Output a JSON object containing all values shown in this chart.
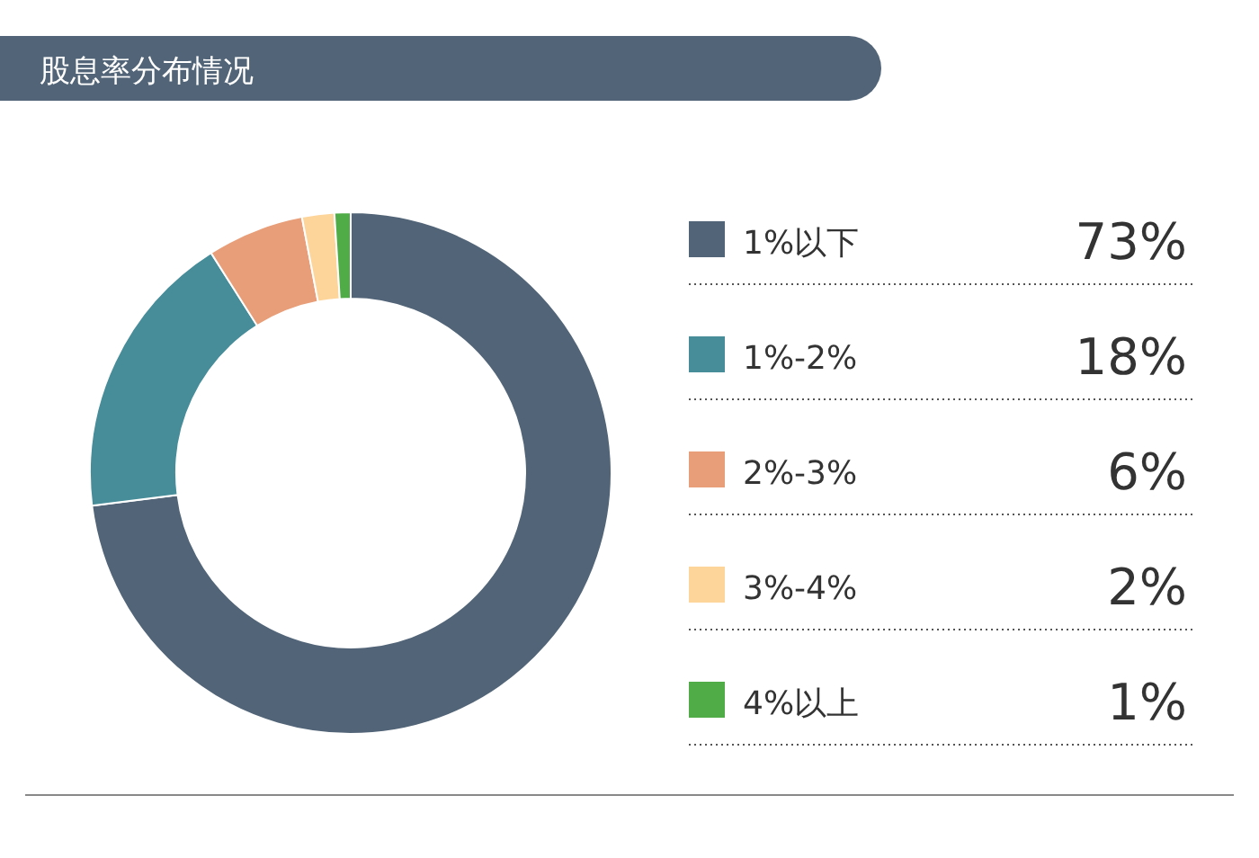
{
  "chart_data": {
    "type": "donut",
    "title": "股息率分布情况",
    "categories": [
      "1%以下",
      "1%-2%",
      "2%-3%",
      "3%-4%",
      "4%以上"
    ],
    "values": [
      73,
      18,
      6,
      2,
      1
    ],
    "colors": [
      "#526477",
      "#468c99",
      "#e89e78",
      "#fdd59a",
      "#50ac47"
    ],
    "value_labels": [
      "73%",
      "18%",
      "6%",
      "2%",
      "1%"
    ],
    "legend": "right"
  }
}
